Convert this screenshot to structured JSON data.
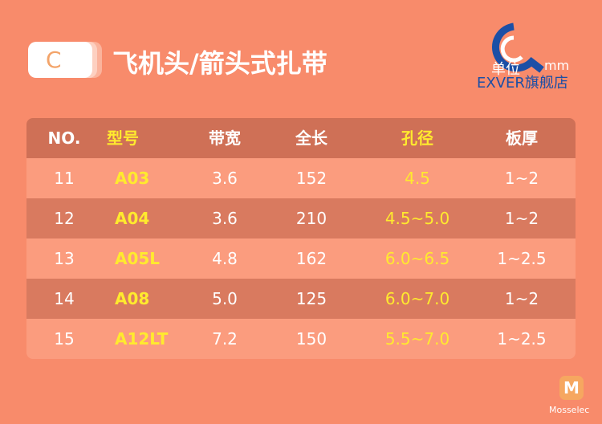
{
  "header": {
    "badge": "C",
    "title": "飞机头/箭头式扎带"
  },
  "watermark": {
    "unit": "单位",
    "unit_value": "mm",
    "store": "EXVER旗舰店"
  },
  "table": {
    "columns": [
      "NO.",
      "型号",
      "带宽",
      "全长",
      "孔径",
      "板厚"
    ],
    "rows": [
      [
        "11",
        "A03",
        "3.6",
        "152",
        "4.5",
        "1~2"
      ],
      [
        "12",
        "A04",
        "3.6",
        "210",
        "4.5~5.0",
        "1~2"
      ],
      [
        "13",
        "A05L",
        "4.8",
        "162",
        "6.0~6.5",
        "1~2.5"
      ],
      [
        "14",
        "A08",
        "5.0",
        "125",
        "6.0~7.0",
        "1~2"
      ],
      [
        "15",
        "A12LT",
        "7.2",
        "150",
        "5.5~7.0",
        "1~2.5"
      ]
    ]
  },
  "footer": {
    "logo_letter": "M",
    "brand": "Mosselec"
  }
}
